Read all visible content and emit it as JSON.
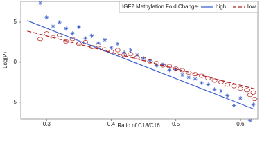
{
  "chart_data": {
    "type": "scatter",
    "legend_title": "IGF2 Methylation Fold Change",
    "x_label": "Ratio of C18/C16",
    "y_label": "Log(P)",
    "xlim": [
      0.26,
      0.627
    ],
    "ylim": [
      -7.1,
      7.6
    ],
    "xticks": [
      0.3,
      0.4,
      0.5,
      0.6
    ],
    "yticks": [
      -5,
      0,
      5
    ],
    "series": [
      {
        "name": "high",
        "color": "#3a5fcd",
        "marker": "asterisk",
        "line_style": "solid",
        "x": [
          0.29,
          0.3,
          0.31,
          0.32,
          0.33,
          0.34,
          0.35,
          0.36,
          0.37,
          0.38,
          0.39,
          0.4,
          0.41,
          0.42,
          0.43,
          0.44,
          0.45,
          0.46,
          0.47,
          0.48,
          0.49,
          0.5,
          0.51,
          0.52,
          0.53,
          0.54,
          0.55,
          0.56,
          0.57,
          0.58,
          0.59,
          0.6,
          0.62,
          0.615
        ],
        "values": [
          7.4,
          5.6,
          4.5,
          5.0,
          4.2,
          3.6,
          4.4,
          3.0,
          3.3,
          2.4,
          2.8,
          1.8,
          2.3,
          1.2,
          1.5,
          0.9,
          0.5,
          0.2,
          -0.4,
          -0.3,
          -1.0,
          -0.9,
          -1.6,
          -1.9,
          -2.1,
          -2.6,
          -2.8,
          -3.4,
          -3.6,
          -4.2,
          -5.4,
          -4.5,
          -5.3,
          -7.3
        ],
        "fit": {
          "x": [
            0.27,
            0.622
          ],
          "values": [
            5.2,
            -5.9
          ]
        }
      },
      {
        "name": "low",
        "color": "#b22222",
        "marker": "circle",
        "line_style": "dashed",
        "x": [
          0.29,
          0.3,
          0.31,
          0.32,
          0.33,
          0.34,
          0.35,
          0.36,
          0.37,
          0.38,
          0.39,
          0.4,
          0.41,
          0.42,
          0.43,
          0.44,
          0.45,
          0.46,
          0.47,
          0.48,
          0.49,
          0.5,
          0.51,
          0.52,
          0.53,
          0.54,
          0.55,
          0.56,
          0.57,
          0.58,
          0.59,
          0.6,
          0.61,
          0.62,
          0.615,
          0.622
        ],
        "values": [
          2.9,
          3.6,
          3.1,
          3.4,
          2.6,
          2.9,
          2.3,
          2.5,
          1.9,
          2.1,
          1.6,
          1.3,
          1.5,
          0.9,
          1.0,
          0.6,
          0.4,
          0.1,
          -0.1,
          -0.4,
          -0.5,
          -0.8,
          -1.0,
          -1.3,
          -1.5,
          -1.7,
          -2.0,
          -2.3,
          -2.5,
          -2.8,
          -3.0,
          -3.3,
          -3.5,
          -3.8,
          -4.1,
          -4.6
        ],
        "fit": {
          "x": [
            0.27,
            0.625
          ],
          "values": [
            3.9,
            -3.4
          ]
        }
      }
    ]
  }
}
